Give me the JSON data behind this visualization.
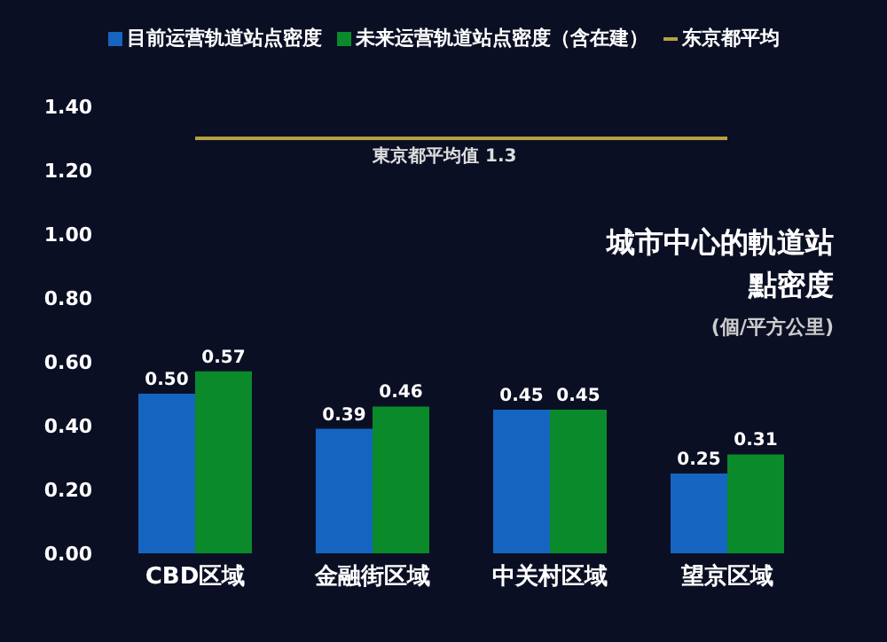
{
  "chart_data": {
    "type": "bar",
    "title": "城市中心的軌道站點密度",
    "subtitle": "(個/平方公里)",
    "categories": [
      "CBD区域",
      "金融街区域",
      "中关村区域",
      "望京区域"
    ],
    "series": [
      {
        "name": "目前运营轨道站点密度",
        "color": "#1565c0",
        "values": [
          0.5,
          0.39,
          0.45,
          0.25
        ],
        "value_labels": [
          "0.50",
          "0.39",
          "0.45",
          "0.25"
        ]
      },
      {
        "name": "未来运营轨道站点密度（含在建）",
        "color": "#0a8a2a",
        "values": [
          0.57,
          0.46,
          0.45,
          0.31
        ],
        "value_labels": [
          "0.57",
          "0.46",
          "0.45",
          "0.31"
        ]
      },
      {
        "name": "东京都平均",
        "type": "line",
        "color": "#b8a040",
        "values": [
          1.3,
          1.3,
          1.3,
          1.3
        ],
        "marker": "none"
      }
    ],
    "annotations": [
      {
        "text": "東京都平均值 1.3",
        "y": 1.3
      }
    ],
    "ylim": [
      0,
      1.4
    ],
    "yticks": [
      {
        "value": 0,
        "label": "0.00"
      },
      {
        "value": 0.2,
        "label": "0.20"
      },
      {
        "value": 0.4,
        "label": "0.40"
      },
      {
        "value": 0.6,
        "label": "0.60"
      },
      {
        "value": 0.8,
        "label": "0.80"
      },
      {
        "value": 1.0,
        "label": "1.00"
      },
      {
        "value": 1.2,
        "label": "1.20"
      },
      {
        "value": 1.4,
        "label": "1.40"
      }
    ],
    "grid": false,
    "legend": "top"
  }
}
